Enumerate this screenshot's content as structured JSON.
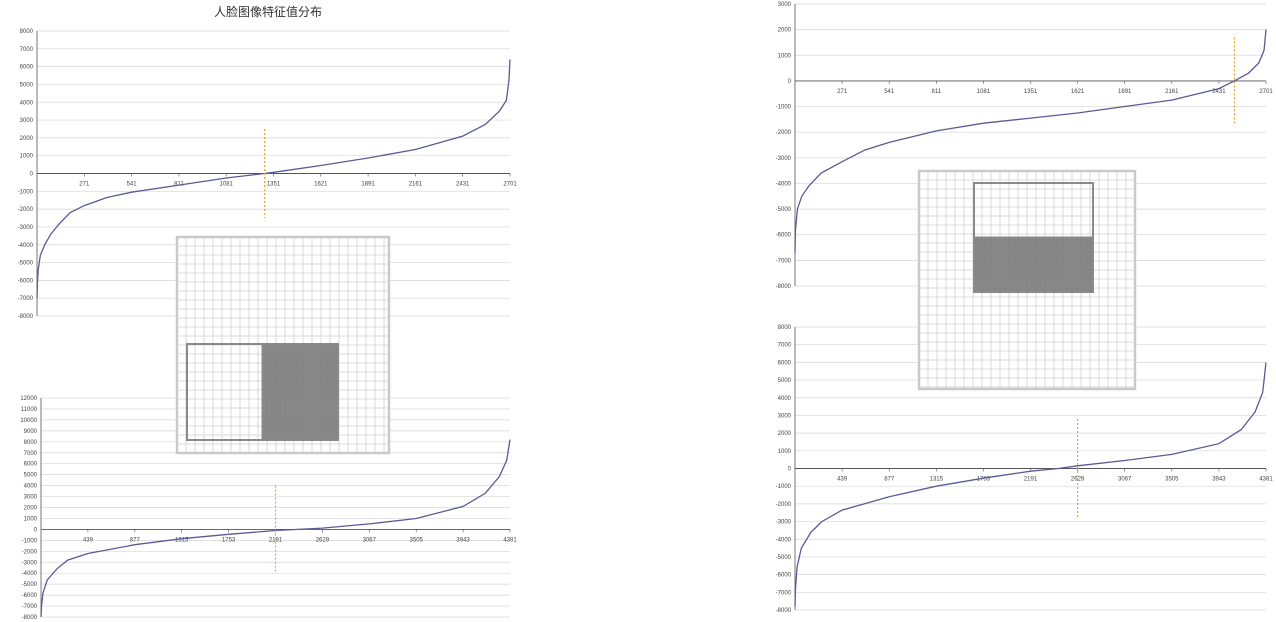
{
  "title": "人脸图像特征值分布",
  "colors": {
    "curve": "#5a5a96",
    "axis": "#555555",
    "grid": "#d6d6d6",
    "marker": "#f0a020",
    "haar_light": "#ffffff",
    "haar_dark": "#7a7a7a",
    "haar_grid_line": "#cfcfcf",
    "haar_border": "#c9c9c9"
  },
  "chart_data": [
    {
      "id": "top-left",
      "type": "line",
      "ylim": [
        -8000,
        8000
      ],
      "y_ticks": [
        8000,
        7000,
        6000,
        5000,
        4000,
        3000,
        2000,
        1000,
        0,
        -1000,
        -2000,
        -3000,
        -4000,
        -5000,
        -6000,
        -7000,
        -8000
      ],
      "x_ticks": [
        "271",
        "541",
        "811",
        "1081",
        "1351",
        "1621",
        "1891",
        "2161",
        "2431",
        "2701"
      ],
      "n_points": 2701,
      "marker_x": 1301,
      "marker_span": [
        -2500,
        2500
      ],
      "curve": [
        [
          1,
          -7000
        ],
        [
          3,
          -6200
        ],
        [
          8,
          -5400
        ],
        [
          20,
          -4600
        ],
        [
          45,
          -4000
        ],
        [
          80,
          -3400
        ],
        [
          130,
          -2800
        ],
        [
          190,
          -2200
        ],
        [
          271,
          -1800
        ],
        [
          400,
          -1350
        ],
        [
          541,
          -1050
        ],
        [
          811,
          -650
        ],
        [
          1081,
          -250
        ],
        [
          1301,
          0
        ],
        [
          1351,
          70
        ],
        [
          1621,
          450
        ],
        [
          1891,
          870
        ],
        [
          2161,
          1350
        ],
        [
          2431,
          2100
        ],
        [
          2560,
          2750
        ],
        [
          2640,
          3500
        ],
        [
          2680,
          4100
        ],
        [
          2695,
          5200
        ],
        [
          2701,
          6400
        ]
      ]
    },
    {
      "id": "bottom-left",
      "type": "line",
      "ylim": [
        -8000,
        12000
      ],
      "y_ticks": [
        12000,
        11000,
        10000,
        9000,
        8000,
        7000,
        6000,
        5000,
        4000,
        3000,
        2000,
        1000,
        0,
        -1000,
        -2000,
        -3000,
        -4000,
        -5000,
        -6000,
        -7000,
        -8000
      ],
      "x_ticks": [
        "439",
        "877",
        "1315",
        "1753",
        "2191",
        "2629",
        "3067",
        "3505",
        "3943",
        "4381"
      ],
      "n_points": 4381,
      "marker_x": 2191,
      "marker_span": [
        -4000,
        4000
      ],
      "curve": [
        [
          1,
          -8000
        ],
        [
          6,
          -7000
        ],
        [
          20,
          -5800
        ],
        [
          60,
          -4600
        ],
        [
          150,
          -3600
        ],
        [
          250,
          -2800
        ],
        [
          439,
          -2200
        ],
        [
          877,
          -1400
        ],
        [
          1315,
          -850
        ],
        [
          1753,
          -450
        ],
        [
          2191,
          -100
        ],
        [
          2400,
          0
        ],
        [
          2629,
          120
        ],
        [
          3067,
          500
        ],
        [
          3505,
          1000
        ],
        [
          3943,
          2100
        ],
        [
          4150,
          3300
        ],
        [
          4280,
          4800
        ],
        [
          4350,
          6300
        ],
        [
          4381,
          8200
        ]
      ]
    },
    {
      "id": "top-right",
      "type": "line",
      "ylim": [
        -8000,
        3000
      ],
      "y_ticks": [
        3000,
        2000,
        1000,
        0,
        -1000,
        -2000,
        -3000,
        -4000,
        -5000,
        -6000,
        -7000,
        -8000
      ],
      "x_ticks": [
        "271",
        "541",
        "811",
        "1081",
        "1351",
        "1621",
        "1891",
        "2161",
        "2431",
        "2701"
      ],
      "n_points": 2701,
      "marker_x": 2520,
      "marker_span": [
        -1700,
        1700
      ],
      "curve": [
        [
          1,
          -6700
        ],
        [
          4,
          -5800
        ],
        [
          15,
          -5000
        ],
        [
          40,
          -4500
        ],
        [
          80,
          -4100
        ],
        [
          150,
          -3600
        ],
        [
          271,
          -3150
        ],
        [
          400,
          -2700
        ],
        [
          541,
          -2400
        ],
        [
          811,
          -1950
        ],
        [
          1081,
          -1650
        ],
        [
          1351,
          -1450
        ],
        [
          1621,
          -1250
        ],
        [
          1891,
          -1000
        ],
        [
          2161,
          -750
        ],
        [
          2431,
          -300
        ],
        [
          2520,
          0
        ],
        [
          2600,
          300
        ],
        [
          2660,
          700
        ],
        [
          2690,
          1200
        ],
        [
          2701,
          2000
        ]
      ]
    },
    {
      "id": "bottom-right",
      "type": "line",
      "ylim": [
        -8000,
        8000
      ],
      "y_ticks": [
        8000,
        7000,
        6000,
        5000,
        4000,
        3000,
        2000,
        1000,
        0,
        -1000,
        -2000,
        -3000,
        -4000,
        -5000,
        -6000,
        -7000,
        -8000
      ],
      "x_ticks": [
        "439",
        "877",
        "1315",
        "1753",
        "2191",
        "2629",
        "3067",
        "3505",
        "3943",
        "4381"
      ],
      "n_points": 4381,
      "marker_x": 2629,
      "marker_span": [
        -2800,
        2800
      ],
      "curve": [
        [
          1,
          -7800
        ],
        [
          6,
          -6800
        ],
        [
          20,
          -5600
        ],
        [
          60,
          -4500
        ],
        [
          150,
          -3600
        ],
        [
          250,
          -3000
        ],
        [
          439,
          -2350
        ],
        [
          877,
          -1600
        ],
        [
          1315,
          -1000
        ],
        [
          1753,
          -550
        ],
        [
          2191,
          -150
        ],
        [
          2450,
          0
        ],
        [
          2629,
          150
        ],
        [
          3067,
          450
        ],
        [
          3505,
          800
        ],
        [
          3943,
          1400
        ],
        [
          4150,
          2200
        ],
        [
          4280,
          3200
        ],
        [
          4350,
          4300
        ],
        [
          4381,
          6000
        ]
      ]
    }
  ],
  "haar_features": [
    {
      "id": "haar-left",
      "pattern": "left-right",
      "white_part": "left",
      "dark_part": "right"
    },
    {
      "id": "haar-right",
      "pattern": "top-bottom",
      "white_part": "top",
      "dark_part": "bottom"
    }
  ]
}
